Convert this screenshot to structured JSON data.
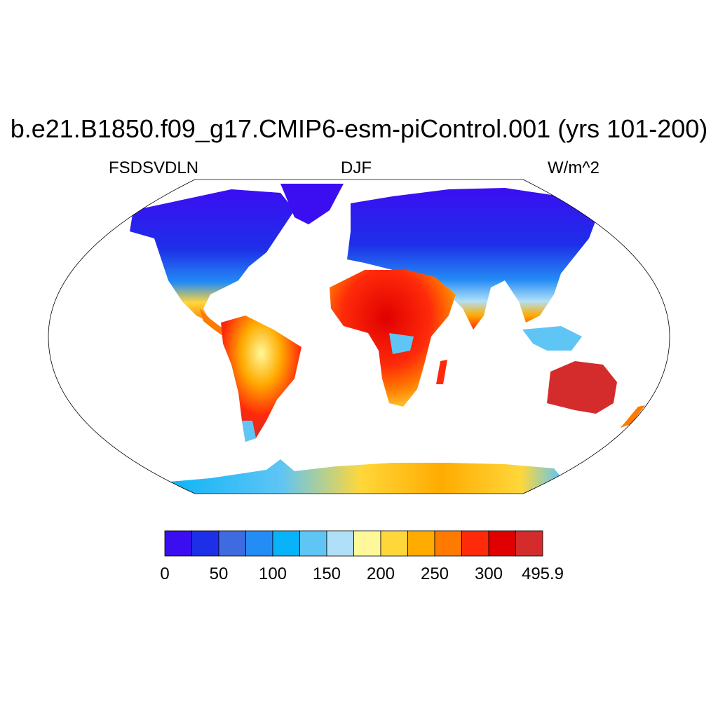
{
  "title": "b.e21.B1850.f09_g17.CMIP6-esm-piControl.001 (yrs 101-200)",
  "left_label": "FSDSVDLN",
  "center_label": "DJF",
  "right_label": "W/m^2",
  "colorbar": {
    "colors": [
      "#3b0ef2",
      "#1e2fe8",
      "#3e6be0",
      "#248cf5",
      "#08b3f7",
      "#5fc5f5",
      "#b0e0f7",
      "#fff89a",
      "#ffd73a",
      "#ffab00",
      "#ff7a00",
      "#ff2a0a",
      "#e00000",
      "#d42c2c"
    ],
    "tick_labels": [
      "0",
      "50",
      "100",
      "150",
      "200",
      "250",
      "300",
      "495.9"
    ]
  },
  "map_legend_colors": {
    "low": "#3b0ef2",
    "mid_low": "#248cf5",
    "mid": "#b0e0f7",
    "mid_high": "#ffd73a",
    "high": "#d42c2c"
  }
}
